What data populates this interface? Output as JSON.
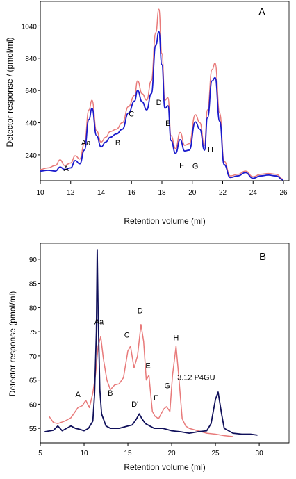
{
  "chart_data": [
    {
      "type": "line",
      "panel_label": "A",
      "xlabel": "Retention volume (ml)",
      "ylabel": "Detector response / (pmol/ml)",
      "xlim": [
        10,
        26
      ],
      "ylim": [
        80,
        1180
      ],
      "x_ticks": [
        "10",
        "12",
        "14",
        "16",
        "18",
        "20",
        "22",
        "24",
        "26"
      ],
      "y_ticks": [
        "240",
        "440",
        "640",
        "840",
        "1040"
      ],
      "y_tick_values": [
        240,
        440,
        640,
        840,
        1040
      ],
      "colors": {
        "series_0": "#e87a7a",
        "series_1": "#1a1acc"
      },
      "series": [
        {
          "x": [
            10.0,
            10.5,
            11.0,
            11.3,
            11.6,
            12.0,
            12.3,
            12.6,
            12.9,
            13.2,
            13.4,
            13.7,
            14.0,
            14.3,
            14.6,
            15.0,
            15.4,
            15.8,
            16.2,
            16.4,
            16.7,
            17.0,
            17.3,
            17.6,
            17.8,
            18.0,
            18.2,
            18.4,
            18.6,
            18.9,
            19.2,
            19.5,
            19.8,
            20.2,
            20.5,
            20.8,
            21.0,
            21.3,
            21.5,
            21.8,
            22.1,
            22.5,
            23.0,
            23.5,
            24.0,
            24.5,
            25.0,
            25.5,
            26.0
          ],
          "y": [
            150,
            160,
            175,
            210,
            175,
            190,
            235,
            215,
            310,
            520,
            580,
            390,
            320,
            350,
            385,
            400,
            440,
            540,
            610,
            700,
            620,
            580,
            700,
            1000,
            1145,
            870,
            580,
            595,
            360,
            280,
            380,
            300,
            310,
            490,
            440,
            300,
            520,
            770,
            810,
            500,
            200,
            110,
            120,
            140,
            105,
            120,
            125,
            120,
            90
          ]
        },
        {
          "x": [
            10.0,
            10.5,
            11.0,
            11.3,
            11.6,
            12.0,
            12.3,
            12.6,
            12.9,
            13.2,
            13.4,
            13.7,
            14.0,
            14.3,
            14.6,
            15.0,
            15.4,
            15.8,
            16.2,
            16.4,
            16.7,
            17.0,
            17.3,
            17.6,
            17.8,
            18.0,
            18.2,
            18.4,
            18.6,
            18.9,
            19.2,
            19.5,
            19.8,
            20.2,
            20.5,
            20.8,
            21.0,
            21.3,
            21.5,
            21.8,
            22.1,
            22.5,
            23.0,
            23.5,
            24.0,
            24.5,
            25.0,
            25.5,
            26.0
          ],
          "y": [
            140,
            145,
            140,
            165,
            150,
            160,
            205,
            185,
            270,
            460,
            530,
            360,
            290,
            320,
            350,
            370,
            400,
            500,
            575,
            640,
            570,
            520,
            620,
            920,
            1005,
            800,
            530,
            545,
            330,
            250,
            335,
            265,
            270,
            445,
            400,
            270,
            470,
            700,
            720,
            450,
            180,
            100,
            110,
            130,
            95,
            110,
            115,
            110,
            85
          ]
        }
      ],
      "annotations": [
        {
          "text": "A",
          "x": 11.7,
          "y": 140
        },
        {
          "text": "Aa",
          "x": 13.0,
          "y": 300
        },
        {
          "text": "B",
          "x": 15.1,
          "y": 300
        },
        {
          "text": "C",
          "x": 16.0,
          "y": 480
        },
        {
          "text": "D",
          "x": 17.8,
          "y": 550
        },
        {
          "text": "E",
          "x": 18.4,
          "y": 420
        },
        {
          "text": "F",
          "x": 19.3,
          "y": 160
        },
        {
          "text": "G",
          "x": 20.2,
          "y": 155
        },
        {
          "text": "H",
          "x": 21.2,
          "y": 260
        }
      ]
    },
    {
      "type": "line",
      "panel_label": "B",
      "xlabel": "Retention volume (ml)",
      "ylabel": "Detector response (pmol/ml)",
      "xlim": [
        5,
        31.5
      ],
      "ylim": [
        52,
        93
      ],
      "x_ticks": [
        "5",
        "10",
        "15",
        "20",
        "25",
        "30"
      ],
      "x_tick_values": [
        5,
        10,
        15,
        20,
        25,
        30
      ],
      "y_ticks": [
        "55",
        "60",
        "65",
        "70",
        "75",
        "80",
        "85",
        "90"
      ],
      "y_tick_values": [
        55,
        60,
        65,
        70,
        75,
        80,
        85,
        90
      ],
      "colors": {
        "series_0": "#e87a7a",
        "series_1": "#10105a"
      },
      "series": [
        {
          "x": [
            6.0,
            6.5,
            7.0,
            7.8,
            8.5,
            9.3,
            9.8,
            10.2,
            10.6,
            11.0,
            11.3,
            11.6,
            11.9,
            12.2,
            12.6,
            13.0,
            13.5,
            14.0,
            14.5,
            15.0,
            15.3,
            15.7,
            16.1,
            16.5,
            16.8,
            17.1,
            17.4,
            17.8,
            18.1,
            18.5,
            18.8,
            19.1,
            19.4,
            19.8,
            20.1,
            20.5,
            20.8,
            21.2,
            21.6,
            22.0,
            23.0,
            24.0,
            25.0,
            26.0,
            27.0
          ],
          "y": [
            57.5,
            56.2,
            56.0,
            56.5,
            57.2,
            59.3,
            59.7,
            60.8,
            59.3,
            62.3,
            66.0,
            72.0,
            74.0,
            69.5,
            65.0,
            63.0,
            64.0,
            64.2,
            65.5,
            71.0,
            72.0,
            67.5,
            70.0,
            76.5,
            73.0,
            65.0,
            66.0,
            58.5,
            57.5,
            57.0,
            58.0,
            59.0,
            59.5,
            58.5,
            66.0,
            72.0,
            66.0,
            57.0,
            55.5,
            55.0,
            54.5,
            54.0,
            53.8,
            53.5,
            53.3
          ]
        },
        {
          "x": [
            5.5,
            6.5,
            7.0,
            7.5,
            8.0,
            8.5,
            9.0,
            9.5,
            10.0,
            10.5,
            11.0,
            11.2,
            11.4,
            11.5,
            11.6,
            11.8,
            12.0,
            12.5,
            13.0,
            14.0,
            15.0,
            15.5,
            16.0,
            16.3,
            16.6,
            17.0,
            17.5,
            18.0,
            19.0,
            20.0,
            21.0,
            22.0,
            23.0,
            24.0,
            24.5,
            25.0,
            25.3,
            25.7,
            26.0,
            27.0,
            28.0,
            29.0,
            29.8
          ],
          "y": [
            54.3,
            54.6,
            55.5,
            54.5,
            55.0,
            55.5,
            55.0,
            54.8,
            54.5,
            55.0,
            56.5,
            62.0,
            75.0,
            92.0,
            79.0,
            63.0,
            58.0,
            55.5,
            55.0,
            55.0,
            55.5,
            55.7,
            57.0,
            58.0,
            57.0,
            56.0,
            55.5,
            55.0,
            55.0,
            54.5,
            54.3,
            54.0,
            54.3,
            54.5,
            56.0,
            61.0,
            62.5,
            58.0,
            55.0,
            54.0,
            53.8,
            53.8,
            53.6
          ]
        }
      ],
      "annotations": [
        {
          "text": "A",
          "x": 9.3,
          "y": 61.5
        },
        {
          "text": "Aa",
          "x": 11.7,
          "y": 76.5
        },
        {
          "text": "B",
          "x": 13.0,
          "y": 61.8
        },
        {
          "text": "C",
          "x": 14.9,
          "y": 73.8
        },
        {
          "text": "D",
          "x": 16.4,
          "y": 78.8
        },
        {
          "text": "E",
          "x": 17.3,
          "y": 67.5
        },
        {
          "text": "F",
          "x": 18.2,
          "y": 60.8
        },
        {
          "text": "G",
          "x": 19.5,
          "y": 63.3
        },
        {
          "text": "H",
          "x": 20.5,
          "y": 73.2
        },
        {
          "text": "D'",
          "x": 15.8,
          "y": 59.5
        },
        {
          "text": "3.12 P4GU",
          "x": 22.8,
          "y": 65.0
        }
      ]
    }
  ]
}
